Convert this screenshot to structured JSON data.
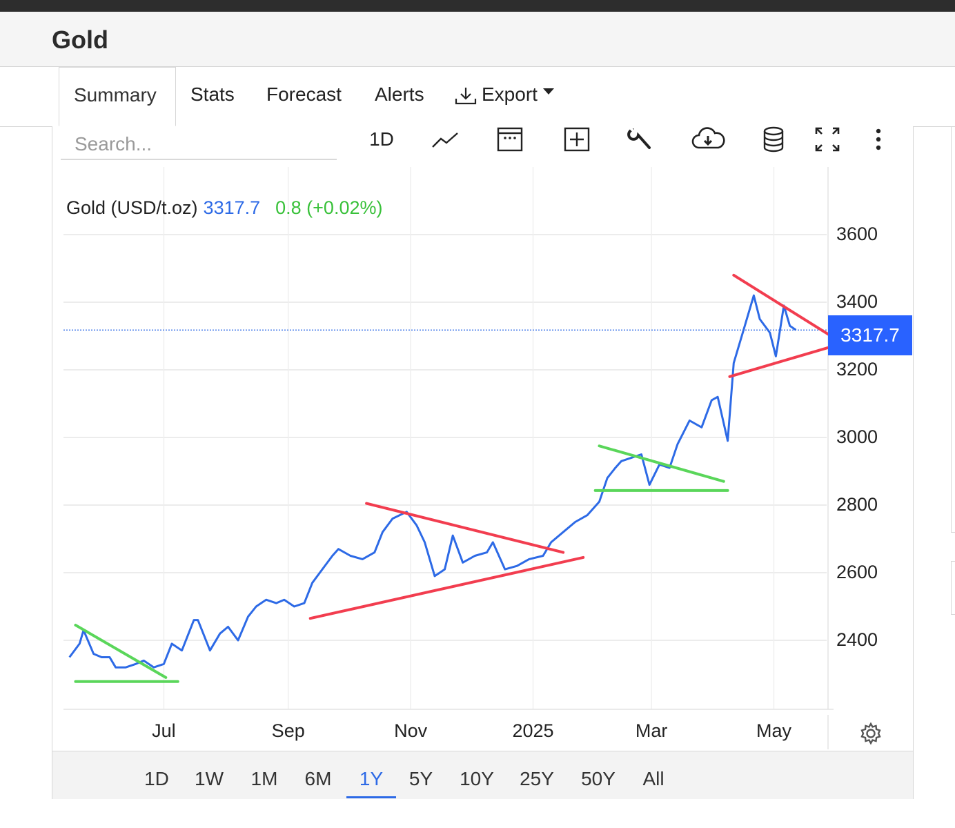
{
  "header": {
    "title": "Gold"
  },
  "tabs": [
    {
      "label": "Summary",
      "active": true
    },
    {
      "label": "Stats"
    },
    {
      "label": "Forecast"
    },
    {
      "label": "Alerts"
    },
    {
      "label": "Export",
      "icon": "download-icon"
    }
  ],
  "toolbar": {
    "search_placeholder": "Search...",
    "interval_label": "1D",
    "icons": [
      "line-chart-icon",
      "calendar-icon",
      "add-icon",
      "wrench-icon",
      "cloud-download-icon",
      "database-icon",
      "fullscreen-icon",
      "more-vertical-icon"
    ]
  },
  "legend": {
    "name": "Gold (USD/t.oz)",
    "value": "3317.7",
    "change": "0.8 (+0.02%)"
  },
  "price_badge": "3317.7",
  "colors": {
    "line": "#2d6ae6",
    "trend_red": "#f23d4f",
    "trend_green": "#5ad65a",
    "badge": "#2962ff",
    "change_positive": "#39c13a"
  },
  "chart_data": {
    "type": "line",
    "series": [
      {
        "x": [
          "2024-05-15",
          "2024-05-20",
          "2024-05-22",
          "2024-05-27",
          "2024-05-31",
          "2024-06-04",
          "2024-06-07",
          "2024-06-12",
          "2024-06-17",
          "2024-06-21",
          "2024-06-26",
          "2024-07-01",
          "2024-07-05",
          "2024-07-10",
          "2024-07-16",
          "2024-07-18",
          "2024-07-24",
          "2024-07-29",
          "2024-08-02",
          "2024-08-07",
          "2024-08-12",
          "2024-08-16",
          "2024-08-21",
          "2024-08-26",
          "2024-08-30",
          "2024-09-04",
          "2024-09-09",
          "2024-09-13",
          "2024-09-18",
          "2024-09-23",
          "2024-09-26",
          "2024-10-02",
          "2024-10-08",
          "2024-10-14",
          "2024-10-18",
          "2024-10-23",
          "2024-10-30",
          "2024-11-04",
          "2024-11-08",
          "2024-11-13",
          "2024-11-18",
          "2024-11-22",
          "2024-11-27",
          "2024-12-03",
          "2024-12-09",
          "2024-12-12",
          "2024-12-18",
          "2024-12-24",
          "2024-12-30",
          "2025-01-06",
          "2025-01-10",
          "2025-01-16",
          "2025-01-22",
          "2025-01-28",
          "2025-02-03",
          "2025-02-07",
          "2025-02-11",
          "2025-02-14",
          "2025-02-19",
          "2025-02-24",
          "2025-02-28",
          "2025-03-05",
          "2025-03-10",
          "2025-03-14",
          "2025-03-20",
          "2025-03-26",
          "2025-03-31",
          "2025-04-03",
          "2025-04-08",
          "2025-04-11",
          "2025-04-16",
          "2025-04-21",
          "2025-04-24",
          "2025-04-29",
          "2025-05-02",
          "2025-05-06",
          "2025-05-09",
          "2025-05-12"
        ],
        "values": [
          2350,
          2390,
          2430,
          2360,
          2350,
          2350,
          2320,
          2320,
          2330,
          2340,
          2320,
          2330,
          2390,
          2370,
          2460,
          2460,
          2370,
          2420,
          2440,
          2400,
          2470,
          2500,
          2520,
          2510,
          2520,
          2500,
          2510,
          2570,
          2610,
          2650,
          2670,
          2650,
          2640,
          2660,
          2720,
          2760,
          2780,
          2740,
          2690,
          2590,
          2610,
          2710,
          2630,
          2650,
          2660,
          2690,
          2610,
          2620,
          2640,
          2650,
          2690,
          2720,
          2750,
          2770,
          2810,
          2880,
          2910,
          2930,
          2940,
          2950,
          2860,
          2920,
          2910,
          2980,
          3050,
          3030,
          3110,
          3120,
          2990,
          3220,
          3320,
          3420,
          3350,
          3310,
          3240,
          3390,
          3330,
          3317.7
        ]
      }
    ],
    "trendlines": [
      "red",
      "green"
    ],
    "yticks": [
      2400,
      2600,
      2800,
      3000,
      3200,
      3400,
      3600
    ],
    "xticks": [
      "Jul",
      "Sep",
      "Nov",
      "2025",
      "Mar",
      "May"
    ],
    "ylim": [
      2230,
      3640
    ],
    "grid": true,
    "last_value": 3317.7
  },
  "range_buttons": [
    {
      "label": "1D"
    },
    {
      "label": "1W"
    },
    {
      "label": "1M"
    },
    {
      "label": "6M"
    },
    {
      "label": "1Y",
      "active": true
    },
    {
      "label": "5Y"
    },
    {
      "label": "10Y"
    },
    {
      "label": "25Y"
    },
    {
      "label": "50Y"
    },
    {
      "label": "All"
    }
  ]
}
